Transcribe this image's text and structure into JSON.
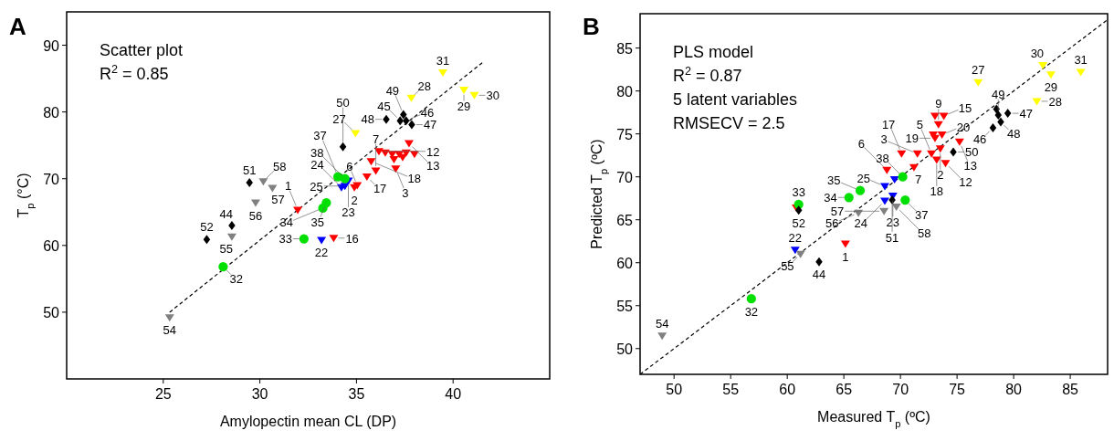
{
  "chart_data": [
    {
      "type": "scatter",
      "xlabel": "Amylopectin mean CL (DP)",
      "ylabel": "T$_{p}$ (°C)",
      "xlim": [
        20,
        45
      ],
      "ylim": [
        40,
        95
      ],
      "xticks": [
        25,
        30,
        35,
        40
      ],
      "yticks": [
        50,
        60,
        70,
        80,
        90
      ],
      "grid": false,
      "annotations": [
        "A",
        "Scatter plot",
        "R$^{2}$ = 0.85",
        {
          "text": "1",
          "x": 31.96,
          "y": 65.3
        },
        {
          "text": "16",
          "x": 33.82,
          "y": 61.1
        },
        {
          "text": "2",
          "x": 34.89,
          "y": 68.7
        },
        {
          "text": "6",
          "x": 35.04,
          "y": 69.0
        },
        {
          "text": "17",
          "x": 35.54,
          "y": 70.3
        },
        {
          "text": "7",
          "x": 36.0,
          "y": 71.2
        },
        {
          "text": "18",
          "x": 35.76,
          "y": 72.6
        },
        {
          "text": "12",
          "x": 36.16,
          "y": 74.1
        },
        {
          "text": "3",
          "x": 37.03,
          "y": 71.5
        },
        {
          "text": "13",
          "x": 37.72,
          "y": 75.3
        },
        {
          "text": "22",
          "x": 33.19,
          "y": 60.8
        },
        {
          "text": "23",
          "x": 34.58,
          "y": 69.7
        },
        {
          "text": "24",
          "x": 34.22,
          "y": 68.7
        },
        {
          "text": "25",
          "x": 34.4,
          "y": 68.9
        },
        {
          "text": "32",
          "x": 28.1,
          "y": 56.8
        },
        {
          "text": "33",
          "x": 32.28,
          "y": 61.0
        },
        {
          "text": "34",
          "x": 33.26,
          "y": 65.6
        },
        {
          "text": "35",
          "x": 33.44,
          "y": 66.4
        },
        {
          "text": "37",
          "x": 34.04,
          "y": 70.3
        },
        {
          "text": "38",
          "x": 34.4,
          "y": 70.0
        },
        {
          "text": "27",
          "x": 34.95,
          "y": 76.8
        },
        {
          "text": "28",
          "x": 37.84,
          "y": 82.1
        },
        {
          "text": "31",
          "x": 39.47,
          "y": 85.9
        },
        {
          "text": "29",
          "x": 40.56,
          "y": 83.3
        },
        {
          "text": "30",
          "x": 41.1,
          "y": 82.5
        },
        {
          "text": "44",
          "x": 28.55,
          "y": 63.0
        },
        {
          "text": "45",
          "x": 37.26,
          "y": 78.7
        },
        {
          "text": "46",
          "x": 37.57,
          "y": 78.7
        },
        {
          "text": "47",
          "x": 37.86,
          "y": 78.1
        },
        {
          "text": "48",
          "x": 36.54,
          "y": 78.9
        },
        {
          "text": "49",
          "x": 37.43,
          "y": 79.6
        },
        {
          "text": "50",
          "x": 34.3,
          "y": 74.8
        },
        {
          "text": "51",
          "x": 29.46,
          "y": 69.4
        },
        {
          "text": "52",
          "x": 27.25,
          "y": 60.9
        },
        {
          "text": "54",
          "x": 25.33,
          "y": 49.2
        },
        {
          "text": "55",
          "x": 28.55,
          "y": 61.3
        },
        {
          "text": "56",
          "x": 29.78,
          "y": 66.4
        },
        {
          "text": "57",
          "x": 30.65,
          "y": 68.6
        },
        {
          "text": "58",
          "x": 30.18,
          "y": 69.6
        }
      ],
      "series": [
        {
          "color": "#ff0000",
          "marker": "triangle",
          "x": [
            31.96,
            33.82,
            34.89,
            35.04,
            35.54,
            36.0,
            35.76,
            36.16,
            37.03,
            37.72,
            36.49,
            36.85,
            37.21,
            37.57,
            38.0,
            36.94,
            37.39
          ],
          "values": [
            65.3,
            61.1,
            68.7,
            69.0,
            70.3,
            71.2,
            72.6,
            74.1,
            71.5,
            75.3,
            73.9,
            73.7,
            73.7,
            73.9,
            73.7,
            72.9,
            73.2
          ]
        },
        {
          "color": "#0000ff",
          "marker": "triangle",
          "x": [
            33.19,
            34.58,
            34.22,
            34.4
          ],
          "values": [
            60.8,
            69.7,
            68.7,
            68.9
          ]
        },
        {
          "color": "#00e000",
          "marker": "circle",
          "x": [
            28.1,
            32.28,
            33.26,
            33.44,
            34.04,
            34.4
          ],
          "values": [
            56.8,
            61.0,
            65.6,
            66.4,
            70.3,
            70.0
          ]
        },
        {
          "color": "#ffff00",
          "marker": "triangle",
          "x": [
            34.95,
            37.84,
            39.47,
            40.56,
            41.1
          ],
          "values": [
            76.8,
            82.1,
            85.9,
            83.3,
            82.5
          ]
        },
        {
          "color": "#000000",
          "marker": "diamond",
          "x": [
            28.55,
            37.26,
            37.57,
            37.86,
            36.54,
            37.43,
            34.3,
            29.46,
            27.25
          ],
          "values": [
            63.0,
            78.7,
            78.7,
            78.1,
            78.9,
            79.6,
            74.8,
            69.4,
            60.9
          ]
        },
        {
          "color": "#808080",
          "marker": "triangle",
          "x": [
            25.33,
            28.55,
            29.78,
            30.65,
            30.18
          ],
          "values": [
            49.2,
            61.3,
            66.4,
            68.6,
            69.6
          ]
        },
        {
          "type": "line",
          "color": "#000000",
          "line_style": "dashed",
          "x": [
            25.33,
            41.56
          ],
          "values": [
            50.0,
            87.5
          ]
        }
      ]
    },
    {
      "type": "scatter",
      "xlabel": "Measured T$_{p}$ (ºC)",
      "ylabel": "Predicted T$_{p}$ (ºC)",
      "xlim": [
        47,
        88.3
      ],
      "ylim": [
        47,
        89
      ],
      "xticks": [
        50,
        55,
        60,
        65,
        70,
        75,
        80,
        85
      ],
      "yticks": [
        50,
        55,
        60,
        65,
        70,
        75,
        80,
        85
      ],
      "grid": false,
      "annotations": [
        "B",
        "PLS model",
        "R$^{2}$ = 0.87",
        "5 latent variables",
        "RMSECV = 2.5",
        {
          "text": "1",
          "x": 65.14,
          "y": 62.2
        },
        {
          "text": "6",
          "x": 68.8,
          "y": 70.8
        },
        {
          "text": "7",
          "x": 71.19,
          "y": 71.1
        },
        {
          "text": "17",
          "x": 70.1,
          "y": 72.7
        },
        {
          "text": "3",
          "x": 71.5,
          "y": 72.7
        },
        {
          "text": "15",
          "x": 73.83,
          "y": 77.1
        },
        {
          "text": "9",
          "x": 73.36,
          "y": 76.1
        },
        {
          "text": "20",
          "x": 73.67,
          "y": 74.9
        },
        {
          "text": "19",
          "x": 73.05,
          "y": 74.5
        },
        {
          "text": "13",
          "x": 75.22,
          "y": 74.1
        },
        {
          "text": "12",
          "x": 73.98,
          "y": 71.6
        },
        {
          "text": "18",
          "x": 73.2,
          "y": 72.0
        },
        {
          "text": "5",
          "x": 72.74,
          "y": 72.7
        },
        {
          "text": "2",
          "x": 73.52,
          "y": 73.3
        },
        {
          "text": "22",
          "x": 60.7,
          "y": 61.5
        },
        {
          "text": "25",
          "x": 68.62,
          "y": 68.9
        },
        {
          "text": "24",
          "x": 68.62,
          "y": 67.2
        },
        {
          "text": "23",
          "x": 69.33,
          "y": 67.8
        },
        {
          "text": "32",
          "x": 56.83,
          "y": 55.8
        },
        {
          "text": "33",
          "x": 61.01,
          "y": 66.8
        },
        {
          "text": "34",
          "x": 65.45,
          "y": 67.6
        },
        {
          "text": "35",
          "x": 66.44,
          "y": 68.4
        },
        {
          "text": "38",
          "x": 70.2,
          "y": 70.0
        },
        {
          "text": "37",
          "x": 70.42,
          "y": 67.3
        },
        {
          "text": "30",
          "x": 82.58,
          "y": 83.0
        },
        {
          "text": "29",
          "x": 83.29,
          "y": 81.9
        },
        {
          "text": "31",
          "x": 85.93,
          "y": 82.2
        },
        {
          "text": "28",
          "x": 82.05,
          "y": 78.8
        },
        {
          "text": "27",
          "x": 76.87,
          "y": 81.0
        },
        {
          "text": "47",
          "x": 79.48,
          "y": 77.4
        },
        {
          "text": "49",
          "x": 78.64,
          "y": 77.2
        },
        {
          "text": "48",
          "x": 78.86,
          "y": 76.4
        },
        {
          "text": "46",
          "x": 78.17,
          "y": 75.7
        },
        {
          "text": "50",
          "x": 74.67,
          "y": 72.9
        },
        {
          "text": "51",
          "x": 69.27,
          "y": 67.3
        },
        {
          "text": "44",
          "x": 62.81,
          "y": 60.1
        },
        {
          "text": "52",
          "x": 61.01,
          "y": 66.1
        },
        {
          "text": "54",
          "x": 48.95,
          "y": 51.5
        },
        {
          "text": "55",
          "x": 61.17,
          "y": 61.0
        },
        {
          "text": "56",
          "x": 66.29,
          "y": 65.8
        },
        {
          "text": "57",
          "x": 68.55,
          "y": 66.0
        },
        {
          "text": "58",
          "x": 69.64,
          "y": 66.5
        }
      ],
      "series": [
        {
          "color": "#ff0000",
          "marker": "triangle",
          "x": [
            60.8,
            65.14,
            68.8,
            71.19,
            70.1,
            71.5,
            73.83,
            73.36,
            73.67,
            73.05,
            75.22,
            73.98,
            73.2,
            72.74,
            73.52,
            73.05,
            72.9
          ],
          "values": [
            66.4,
            62.2,
            70.8,
            71.1,
            72.7,
            72.7,
            77.1,
            76.1,
            74.9,
            74.5,
            74.1,
            71.6,
            72.0,
            72.7,
            73.3,
            77.1,
            74.9
          ]
        },
        {
          "color": "#0000ff",
          "marker": "triangle",
          "x": [
            60.7,
            68.62,
            68.62,
            69.33,
            69.48
          ],
          "values": [
            61.5,
            68.9,
            67.2,
            67.8,
            69.7
          ]
        },
        {
          "color": "#00e000",
          "marker": "circle",
          "x": [
            56.83,
            61.01,
            65.45,
            66.44,
            70.2,
            70.42
          ],
          "values": [
            55.8,
            66.8,
            67.6,
            68.4,
            70.0,
            67.3
          ]
        },
        {
          "color": "#ffff00",
          "marker": "triangle",
          "x": [
            82.58,
            83.29,
            85.93,
            82.05,
            76.87
          ],
          "values": [
            83.0,
            81.9,
            82.2,
            78.8,
            81.0
          ]
        },
        {
          "color": "#000000",
          "marker": "diamond",
          "x": [
            78.48,
            79.48,
            78.64,
            78.86,
            78.17,
            74.67,
            69.27,
            62.81,
            61.01
          ],
          "values": [
            77.9,
            77.4,
            77.2,
            76.4,
            75.7,
            72.9,
            67.3,
            60.1,
            66.1
          ]
        },
        {
          "color": "#808080",
          "marker": "triangle",
          "x": [
            48.95,
            61.17,
            66.29,
            68.55,
            69.64
          ],
          "values": [
            51.5,
            61.0,
            65.8,
            66.0,
            66.5
          ]
        },
        {
          "type": "line",
          "color": "#000000",
          "line_style": "dashed",
          "x": [
            47,
            88.3
          ],
          "values": [
            47,
            88.3
          ]
        }
      ]
    }
  ]
}
